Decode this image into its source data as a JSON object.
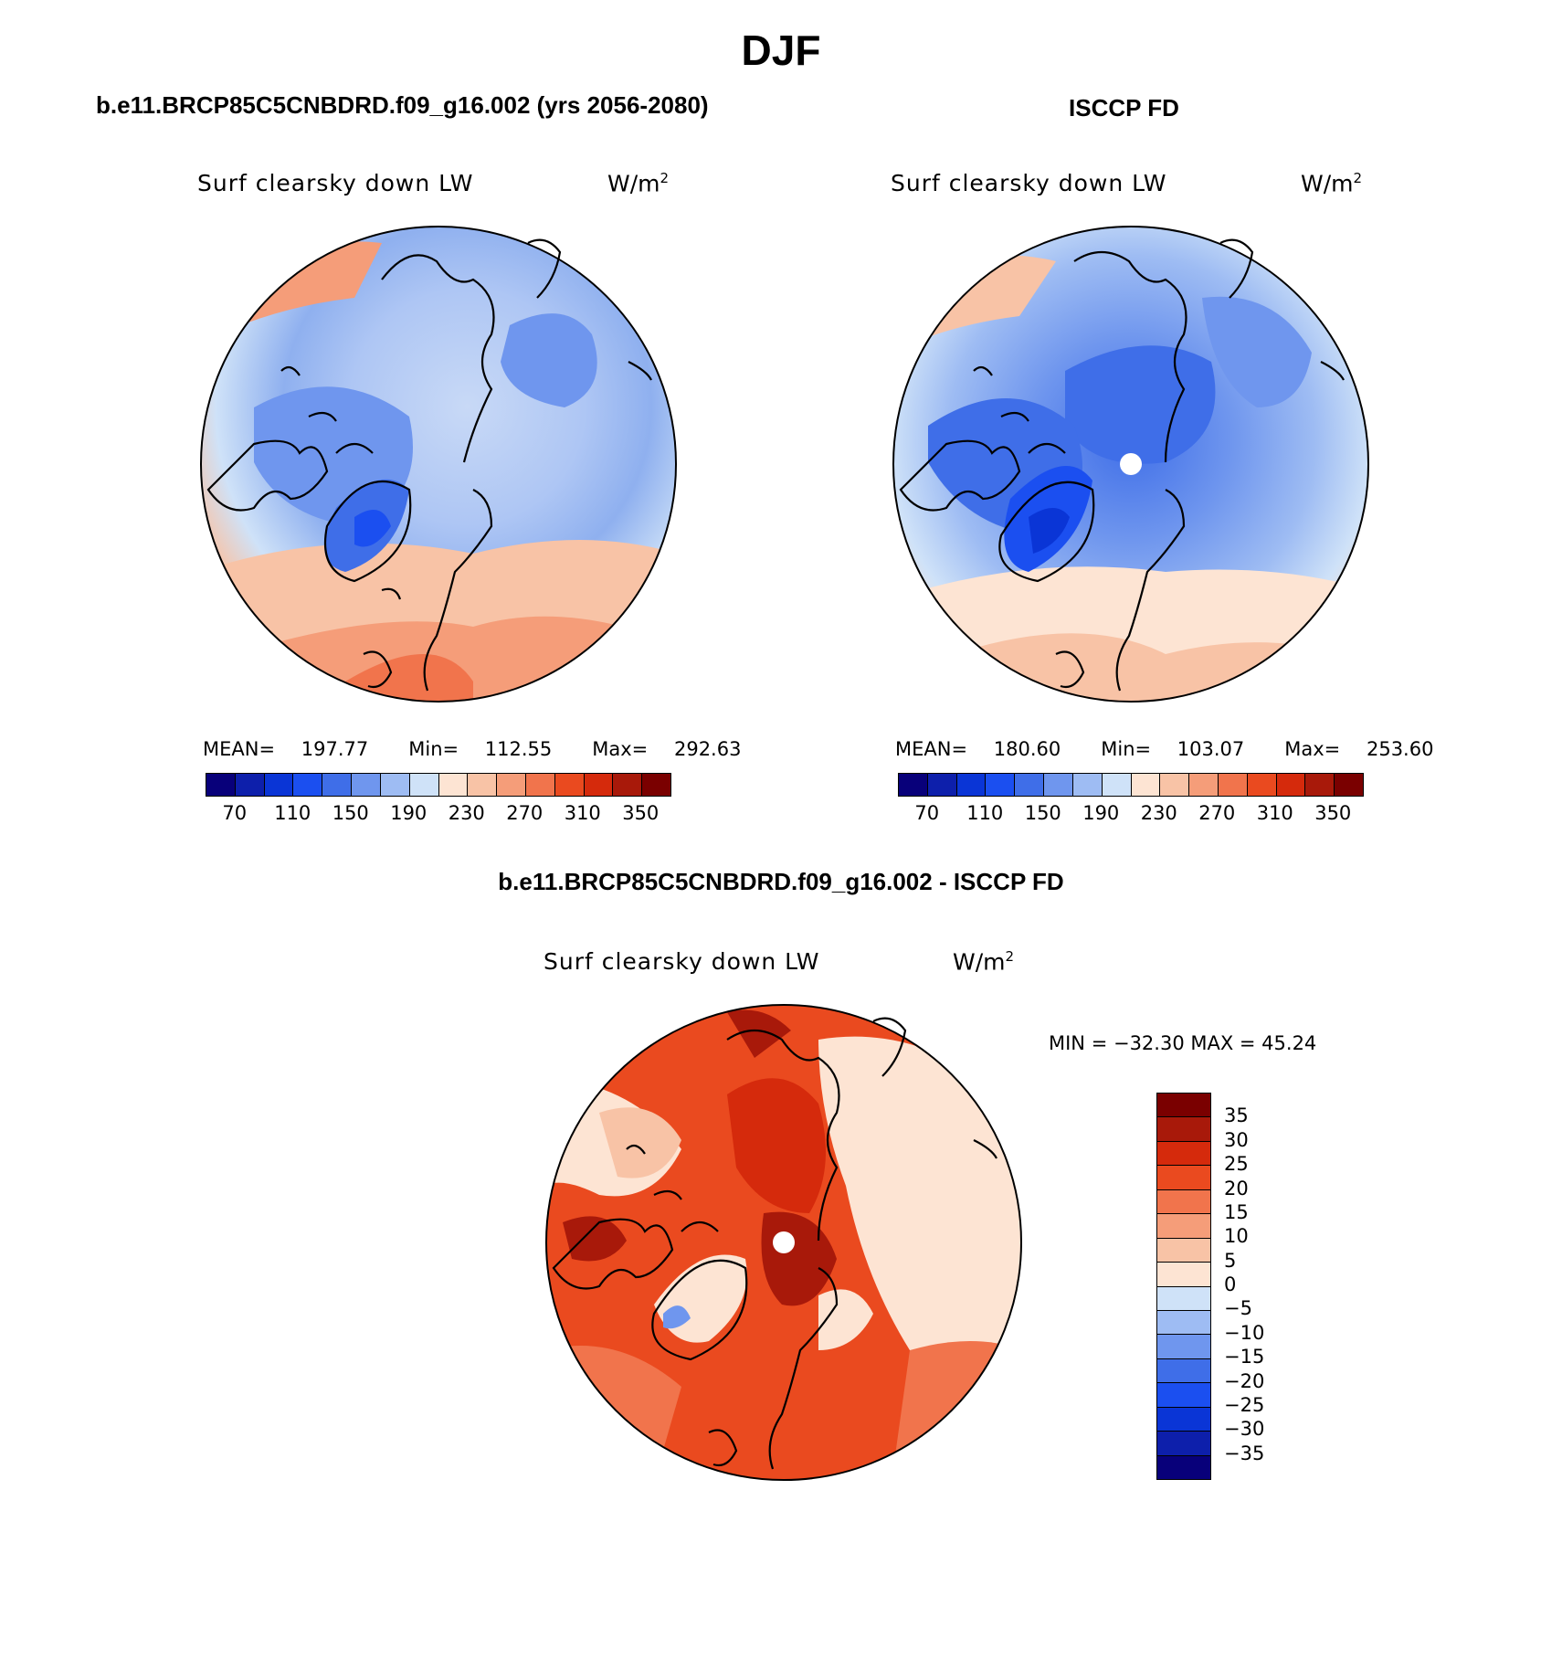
{
  "figure": {
    "season": "DJF",
    "title_left": "b.e11.BRCP85C5CNBDRD.f09_g16.002 (yrs 2056-2080)",
    "title_right": "ISCCP FD",
    "title_diff": "b.e11.BRCP85C5CNBDRD.f09_g16.002 - ISCCP FD"
  },
  "panels": {
    "model": {
      "variable": "Surf clearsky down LW",
      "units": "W/m",
      "units_sup": "2",
      "mean_label": "MEAN=",
      "mean": "197.77",
      "min_label": "Min=",
      "min": "112.55",
      "max_label": "Max=",
      "max": "292.63"
    },
    "obs": {
      "variable": "Surf clearsky down LW",
      "units": "W/m",
      "units_sup": "2",
      "mean_label": "MEAN=",
      "mean": "180.60",
      "min_label": "Min=",
      "min": "103.07",
      "max_label": "Max=",
      "max": "253.60"
    },
    "diff": {
      "variable": "Surf clearsky down LW",
      "units": "W/m",
      "units_sup": "2",
      "minmax_text": "MIN = −32.30 MAX =   45.24"
    }
  },
  "colorbars": {
    "absolute": {
      "colors": [
        "#08007a",
        "#0d1fab",
        "#0a35d6",
        "#1b4ff0",
        "#3f6ee8",
        "#6f96ee",
        "#9ebcf3",
        "#cfe2f8",
        "#fde4d3",
        "#f8c3a6",
        "#f59d79",
        "#f1744c",
        "#ea4a1f",
        "#d52a0c",
        "#a8190a",
        "#7a0000"
      ],
      "tick_labels": [
        "70",
        "110",
        "150",
        "190",
        "230",
        "270",
        "310",
        "350"
      ]
    },
    "difference": {
      "colors": [
        "#7a0000",
        "#a8190a",
        "#d52a0c",
        "#ea4a1f",
        "#f1744c",
        "#f59d79",
        "#f8c3a6",
        "#fde4d3",
        "#cfe2f8",
        "#9ebcf3",
        "#6f96ee",
        "#3f6ee8",
        "#1b4ff0",
        "#0a35d6",
        "#0d1fab",
        "#08007a"
      ],
      "tick_labels": [
        "35",
        "30",
        "25",
        "20",
        "15",
        "10",
        "5",
        "0",
        "−5",
        "−10",
        "−15",
        "−20",
        "−25",
        "−30",
        "−35"
      ]
    }
  }
}
